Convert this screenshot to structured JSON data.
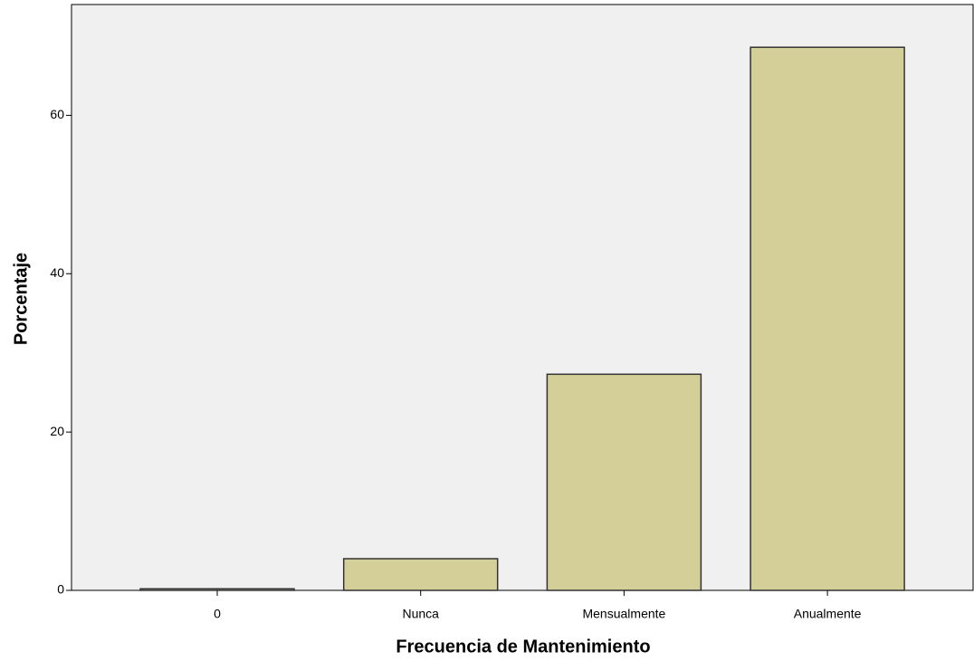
{
  "chart_data": {
    "type": "bar",
    "x_label": "Frecuencia de Mantenimiento",
    "y_label": "Porcentaje",
    "categories": [
      "0",
      "Nunca",
      "Mensualmente",
      "Anualmente"
    ],
    "values": [
      0.2,
      4.0,
      27.3,
      68.6
    ],
    "color": "#d4cf98",
    "ylim": [
      0,
      74
    ],
    "yticks": [
      0,
      20,
      40,
      60
    ],
    "grid": false
  }
}
